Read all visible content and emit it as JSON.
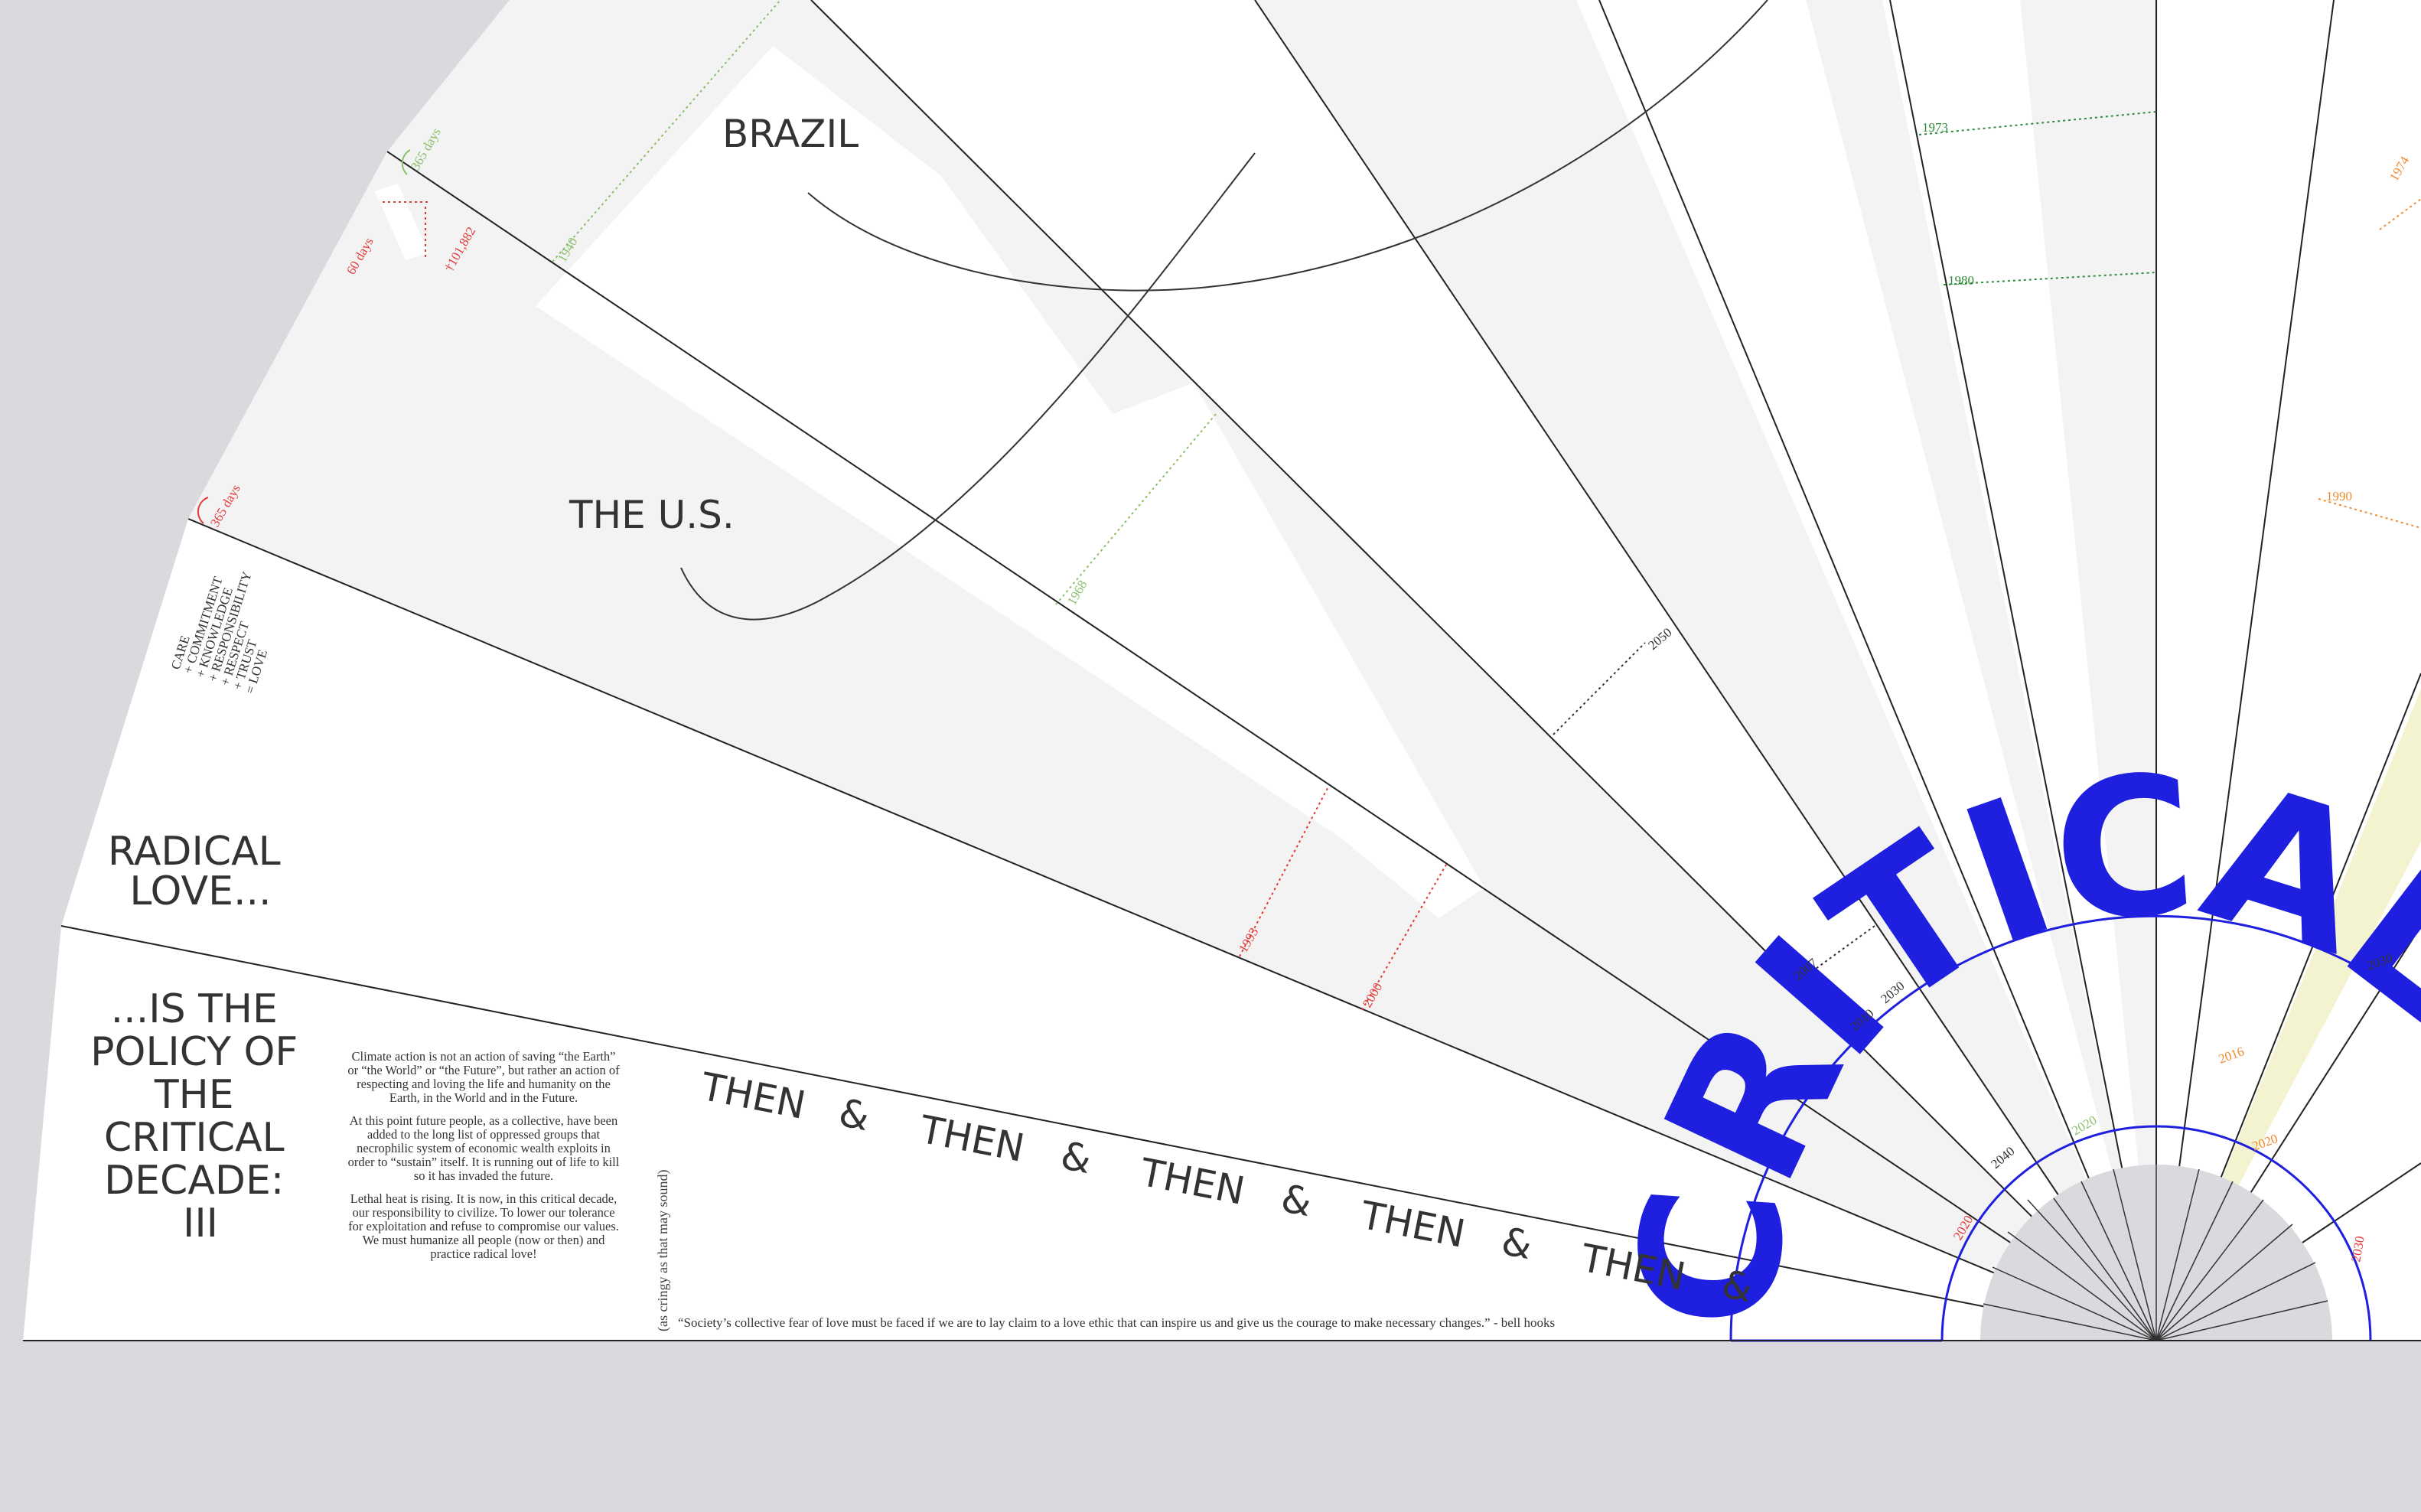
{
  "countries": [
    "BRAZIL",
    "THE U.S."
  ],
  "radical_love": {
    "line1": "RADICAL",
    "line2": "LOVE..."
  },
  "policy": {
    "line1": "...IS THE",
    "line2": "POLICY OF",
    "line3": "THE",
    "line4": "CRITICAL",
    "line5": "DECADE:",
    "line6": "III"
  },
  "love_equation": [
    "CARE",
    "+ COMMITMENT",
    "+ KNOWLEDGE",
    "+ RESPONSIBILITY",
    "+ RESPECT",
    "+ TRUST",
    "= LOVE"
  ],
  "essay": {
    "p1": "Climate action is not an action of saving “the Earth” or “the World” or “the Future”, but rather an action of respecting and loving the life and humanity on the Earth, in the World and in the Future.",
    "p2": "At this point future people, as a collective, have been added to the long list of oppressed groups that necrophilic system of economic wealth exploits in order to “sustain” itself. It is running out of life to kill so it has invaded the future.",
    "p3": "Lethal heat is rising. It is now, in this critical decade, our responsibility to civilize. To lower our tolerance for exploitation and refuse to compromise our values. We must humanize all people (now or then) and practice radical love!"
  },
  "then_word": "THEN",
  "ampersand": "&",
  "aside": "(as cringy as that may sound)",
  "quote": "“Society’s collective fear of love must be faced if we are to lay claim to a love ethic that can inspire us and give us the courage to make necessary changes.” - bell hooks",
  "arc_title": "CRITICAL DECADE",
  "annotations": {
    "days_365_top": "365 days",
    "days_60": "60 days",
    "count": "†101,882",
    "days_365_mid": "365 days"
  },
  "years": {
    "y1940": "1940",
    "y1968": "1968",
    "y1993": "1993",
    "y2000": "2000",
    "y2050": "2050",
    "y2007": "2007",
    "y2010": "2010",
    "y2030a": "2030",
    "y2020a": "2020",
    "y2020b": "2020",
    "y2040": "2040",
    "y1973": "1973",
    "y1980": "1980",
    "y1974": "1974",
    "y1990": "1990",
    "y2016": "2016",
    "y2020c": "2020",
    "y2030b": "2030",
    "y2030c": "2030"
  },
  "colors": {
    "background": "#d9d9de",
    "panel": "#ffffff",
    "band": "#f3f3f3",
    "lines": "#222222",
    "accent_blue": "#1f1fe0",
    "red": "#e23a3a",
    "green": "#2e8b3a",
    "light_green": "#8cbf6a",
    "orange": "#f08a30",
    "yellow_band": "#f4f3cf"
  }
}
